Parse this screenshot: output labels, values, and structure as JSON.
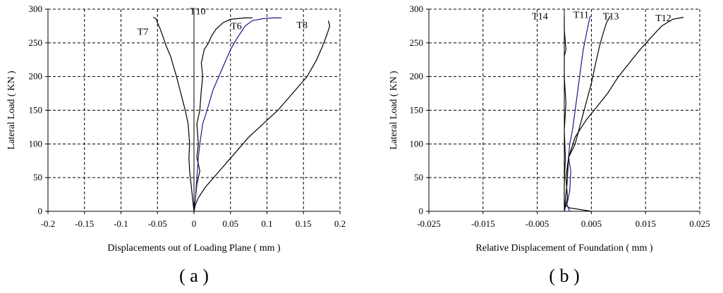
{
  "chart_data": [
    {
      "type": "line",
      "caption": "( a )",
      "xlabel": "Displacements out of Loading Plane ( mm )",
      "ylabel": "Lateral Load ( KN )",
      "xlim": [
        -0.2,
        0.2
      ],
      "ylim": [
        0,
        300
      ],
      "x_ticks": [
        "-0.2",
        "-0.15",
        "-0.1",
        "-0.05",
        "0",
        "0.05",
        "0.1",
        "0.15",
        "0.2"
      ],
      "y_ticks": [
        "0",
        "50",
        "100",
        "150",
        "200",
        "250",
        "300"
      ],
      "grid": "dashed",
      "series": [
        {
          "name": "T7",
          "color": "#000000",
          "x": [
            0.0,
            -0.002,
            -0.004,
            -0.006,
            -0.007,
            -0.006,
            -0.008,
            -0.012,
            -0.018,
            -0.024,
            -0.028,
            -0.032,
            -0.038,
            -0.042,
            -0.046,
            -0.05,
            -0.052,
            -0.056
          ],
          "y": [
            0,
            20,
            40,
            60,
            80,
            100,
            130,
            150,
            175,
            200,
            215,
            230,
            245,
            258,
            270,
            280,
            286,
            288
          ]
        },
        {
          "name": "T10",
          "color": "#000000",
          "x": [
            0.0,
            0.002,
            0.004,
            0.008,
            0.004,
            0.006,
            0.004,
            0.008,
            0.01,
            0.012,
            0.01,
            0.014,
            0.02,
            0.024,
            0.03,
            0.04,
            0.05,
            0.06,
            0.07,
            0.08
          ],
          "y": [
            0,
            20,
            40,
            60,
            80,
            100,
            130,
            150,
            180,
            200,
            220,
            240,
            250,
            260,
            270,
            280,
            285,
            286,
            287,
            287
          ]
        },
        {
          "name": "T6",
          "color": "#1a1a8c",
          "x": [
            0.0,
            0.002,
            0.004,
            0.006,
            0.008,
            0.012,
            0.018,
            0.026,
            0.034,
            0.042,
            0.05,
            0.058,
            0.064,
            0.07,
            0.08,
            0.095,
            0.11,
            0.12
          ],
          "y": [
            0,
            20,
            50,
            80,
            100,
            130,
            150,
            180,
            200,
            220,
            240,
            255,
            265,
            275,
            283,
            286,
            287,
            287
          ]
        },
        {
          "name": "T8",
          "color": "#000000",
          "x": [
            0.0,
            0.002,
            0.006,
            0.015,
            0.035,
            0.055,
            0.075,
            0.095,
            0.115,
            0.135,
            0.155,
            0.168,
            0.176,
            0.182,
            0.186,
            0.184
          ],
          "y": [
            0,
            10,
            20,
            35,
            60,
            85,
            110,
            130,
            150,
            175,
            200,
            225,
            245,
            262,
            275,
            283
          ]
        }
      ],
      "series_labels": [
        "T7",
        "T10",
        "T6",
        "T8"
      ]
    },
    {
      "type": "line",
      "caption": "( b )",
      "xlabel": "Relative Displacement of Foundation ( mm )",
      "ylabel": "Lateral Load ( KN )",
      "xlim": [
        -0.025,
        0.025
      ],
      "ylim": [
        0,
        300
      ],
      "x_ticks": [
        "-0.025",
        "-0.015",
        "-0.005",
        "0.005",
        "0.015",
        "0.025"
      ],
      "y_ticks": [
        "0",
        "50",
        "100",
        "150",
        "200",
        "250",
        "300"
      ],
      "grid": "dashed",
      "series": [
        {
          "name": "T14",
          "color": "#000000",
          "x": [
            0.005,
            0.001,
            0.0,
            0.0,
            0.0002,
            0.0,
            0.0003,
            0.0,
            0.0,
            0.0003,
            0.0,
            0.0
          ],
          "y": [
            0,
            5,
            10,
            40,
            80,
            120,
            160,
            200,
            230,
            240,
            270,
            290
          ]
        },
        {
          "name": "T11",
          "color": "#1a1a8c",
          "x": [
            0.001,
            0.0005,
            0.001,
            0.0012,
            0.0008,
            0.001,
            0.0015,
            0.002,
            0.0025,
            0.003,
            0.0035,
            0.004,
            0.0045,
            0.0048
          ],
          "y": [
            0,
            10,
            30,
            60,
            80,
            100,
            120,
            150,
            180,
            210,
            240,
            260,
            280,
            290
          ]
        },
        {
          "name": "T13",
          "color": "#000000",
          "x": [
            0.0,
            0.0006,
            0.0003,
            0.0008,
            0.002,
            0.003,
            0.004,
            0.005,
            0.0058,
            0.0065,
            0.0072,
            0.0078,
            0.0085
          ],
          "y": [
            0,
            20,
            50,
            80,
            100,
            130,
            160,
            190,
            220,
            245,
            265,
            280,
            290
          ]
        },
        {
          "name": "T12",
          "color": "#000000",
          "x": [
            0.0,
            0.0005,
            0.0008,
            0.002,
            0.004,
            0.006,
            0.008,
            0.01,
            0.012,
            0.014,
            0.016,
            0.018,
            0.02,
            0.022
          ],
          "y": [
            0,
            40,
            80,
            110,
            135,
            155,
            175,
            200,
            220,
            240,
            258,
            275,
            285,
            288
          ]
        }
      ],
      "series_labels": [
        "T14",
        "T11",
        "T13",
        "T12"
      ]
    }
  ]
}
